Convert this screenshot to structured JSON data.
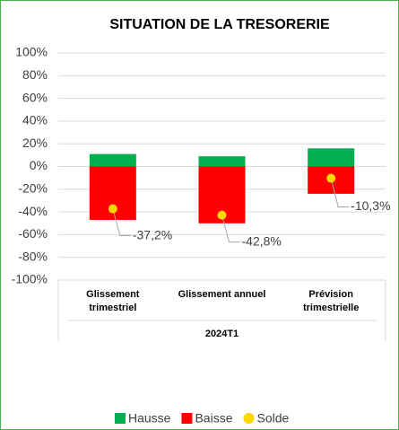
{
  "chart_data": {
    "type": "bar",
    "title": "SITUATION DE LA TRESORERIE",
    "categories": [
      "Glissement trimestriel",
      "Glissement annuel",
      "Prévision trimestrielle"
    ],
    "group_label": "2024T1",
    "series": [
      {
        "name": "Hausse",
        "color": "#00b050",
        "values": [
          11,
          9,
          16
        ]
      },
      {
        "name": "Baisse",
        "color": "#ff0000",
        "values": [
          -47,
          -50,
          -24
        ]
      },
      {
        "name": "Solde",
        "color": "#ffd700",
        "type": "scatter",
        "values": [
          -37.2,
          -42.8,
          -10.3
        ],
        "value_labels": [
          "-37,2%",
          "-42,8%",
          "-10,3%"
        ]
      }
    ],
    "ylim": [
      -100,
      100
    ],
    "yticks": [
      {
        "value": -100,
        "label": "-100%"
      },
      {
        "value": -80,
        "label": "-80%"
      },
      {
        "value": -60,
        "label": "-60%"
      },
      {
        "value": -40,
        "label": "-40%"
      },
      {
        "value": -20,
        "label": "-20%"
      },
      {
        "value": 0,
        "label": "0%"
      },
      {
        "value": 20,
        "label": "20%"
      },
      {
        "value": 40,
        "label": "40%"
      },
      {
        "value": 60,
        "label": "60%"
      },
      {
        "value": 80,
        "label": "80%"
      },
      {
        "value": 100,
        "label": "100%"
      }
    ],
    "grid": true,
    "legend": "bottom"
  }
}
